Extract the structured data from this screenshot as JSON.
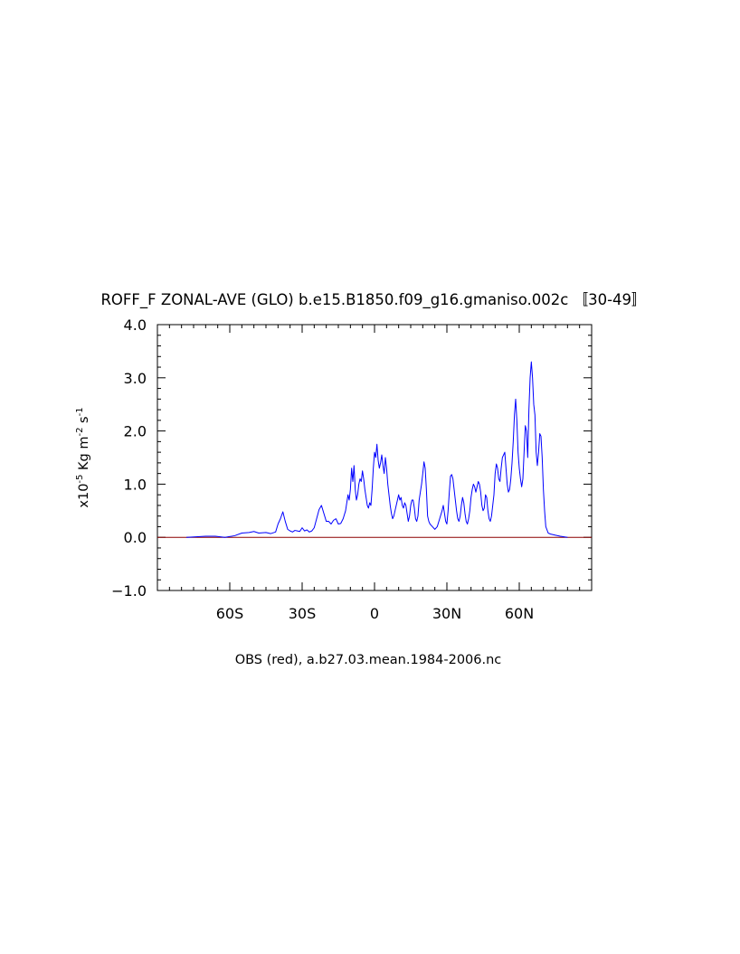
{
  "chart_data": {
    "type": "line",
    "title": "ROFF_F ZONAL-AVE (GLO) b.e15.B1850.f09_g16.gmaniso.002c 〚30-49〛",
    "xlabel": "OBS (red), a.b27.03.mean.1984-2006.nc",
    "ylabel": {
      "prefix": "x10",
      "exp1": "-5",
      "mid": " Kg m",
      "exp2": "-2",
      "mid2": " s",
      "exp3": "-1"
    },
    "xlim": [
      -90,
      90
    ],
    "ylim": [
      -1.0,
      4.0
    ],
    "x_ticks": [
      {
        "value": -60,
        "label": "60S"
      },
      {
        "value": -30,
        "label": "30S"
      },
      {
        "value": 0,
        "label": "0"
      },
      {
        "value": 30,
        "label": "30N"
      },
      {
        "value": 60,
        "label": "60N"
      }
    ],
    "y_ticks": [
      {
        "value": -1.0,
        "label": "−1.0"
      },
      {
        "value": 0.0,
        "label": "0.0"
      },
      {
        "value": 1.0,
        "label": "1.0"
      },
      {
        "value": 2.0,
        "label": "2.0"
      },
      {
        "value": 3.0,
        "label": "3.0"
      },
      {
        "value": 4.0,
        "label": "4.0"
      }
    ],
    "reference_line": {
      "y": 0,
      "color": "#8b0000"
    },
    "series": [
      {
        "color": "#0000ff",
        "points": [
          [
            -78,
            0.0
          ],
          [
            -70,
            0.02
          ],
          [
            -66,
            0.02
          ],
          [
            -62,
            0.0
          ],
          [
            -58,
            0.03
          ],
          [
            -55,
            0.08
          ],
          [
            -52,
            0.09
          ],
          [
            -50,
            0.11
          ],
          [
            -48,
            0.08
          ],
          [
            -45,
            0.09
          ],
          [
            -43,
            0.07
          ],
          [
            -41,
            0.1
          ],
          [
            -40,
            0.25
          ],
          [
            -39,
            0.35
          ],
          [
            -38,
            0.48
          ],
          [
            -37,
            0.3
          ],
          [
            -36,
            0.15
          ],
          [
            -35,
            0.12
          ],
          [
            -34,
            0.1
          ],
          [
            -33,
            0.13
          ],
          [
            -32,
            0.12
          ],
          [
            -31,
            0.11
          ],
          [
            -30,
            0.18
          ],
          [
            -29,
            0.12
          ],
          [
            -28,
            0.14
          ],
          [
            -27,
            0.1
          ],
          [
            -26,
            0.12
          ],
          [
            -25,
            0.18
          ],
          [
            -24,
            0.35
          ],
          [
            -23,
            0.52
          ],
          [
            -22,
            0.6
          ],
          [
            -21,
            0.45
          ],
          [
            -20,
            0.3
          ],
          [
            -19,
            0.3
          ],
          [
            -18,
            0.25
          ],
          [
            -17,
            0.32
          ],
          [
            -16,
            0.35
          ],
          [
            -15,
            0.25
          ],
          [
            -14,
            0.26
          ],
          [
            -13,
            0.35
          ],
          [
            -12,
            0.5
          ],
          [
            -11,
            0.8
          ],
          [
            -10.5,
            0.7
          ],
          [
            -10,
            0.9
          ],
          [
            -9.5,
            1.3
          ],
          [
            -9,
            1.05
          ],
          [
            -8.5,
            1.35
          ],
          [
            -8,
            0.9
          ],
          [
            -7.5,
            0.7
          ],
          [
            -7,
            0.8
          ],
          [
            -6.5,
            1.0
          ],
          [
            -6,
            1.1
          ],
          [
            -5.5,
            1.05
          ],
          [
            -5,
            1.25
          ],
          [
            -4.5,
            1.1
          ],
          [
            -4,
            0.9
          ],
          [
            -3.5,
            0.75
          ],
          [
            -3,
            0.6
          ],
          [
            -2.5,
            0.55
          ],
          [
            -2,
            0.65
          ],
          [
            -1.5,
            0.6
          ],
          [
            -1,
            0.9
          ],
          [
            -0.5,
            1.3
          ],
          [
            0,
            1.6
          ],
          [
            0.5,
            1.5
          ],
          [
            1,
            1.75
          ],
          [
            1.5,
            1.45
          ],
          [
            2,
            1.3
          ],
          [
            2.5,
            1.4
          ],
          [
            3,
            1.55
          ],
          [
            3.5,
            1.35
          ],
          [
            4,
            1.2
          ],
          [
            4.5,
            1.5
          ],
          [
            5,
            1.3
          ],
          [
            5.5,
            1.0
          ],
          [
            6,
            0.8
          ],
          [
            6.5,
            0.6
          ],
          [
            7,
            0.45
          ],
          [
            7.5,
            0.35
          ],
          [
            8,
            0.4
          ],
          [
            8.5,
            0.5
          ],
          [
            9,
            0.6
          ],
          [
            9.5,
            0.7
          ],
          [
            10,
            0.8
          ],
          [
            10.5,
            0.7
          ],
          [
            11,
            0.75
          ],
          [
            11.5,
            0.6
          ],
          [
            12,
            0.55
          ],
          [
            12.5,
            0.65
          ],
          [
            13,
            0.6
          ],
          [
            13.5,
            0.45
          ],
          [
            14,
            0.3
          ],
          [
            14.5,
            0.4
          ],
          [
            15,
            0.6
          ],
          [
            15.5,
            0.7
          ],
          [
            16,
            0.7
          ],
          [
            16.5,
            0.55
          ],
          [
            17,
            0.35
          ],
          [
            17.5,
            0.3
          ],
          [
            18,
            0.4
          ],
          [
            18.5,
            0.7
          ],
          [
            19,
            0.85
          ],
          [
            19.5,
            1.0
          ],
          [
            20,
            1.2
          ],
          [
            20.5,
            1.42
          ],
          [
            21,
            1.3
          ],
          [
            21.5,
            0.9
          ],
          [
            22,
            0.4
          ],
          [
            22.5,
            0.3
          ],
          [
            23,
            0.25
          ],
          [
            24,
            0.2
          ],
          [
            25,
            0.15
          ],
          [
            26,
            0.2
          ],
          [
            27,
            0.35
          ],
          [
            28,
            0.5
          ],
          [
            28.5,
            0.6
          ],
          [
            29,
            0.45
          ],
          [
            29.5,
            0.3
          ],
          [
            30,
            0.25
          ],
          [
            30.5,
            0.5
          ],
          [
            31,
            0.85
          ],
          [
            31.5,
            1.15
          ],
          [
            32,
            1.18
          ],
          [
            32.5,
            1.1
          ],
          [
            33,
            0.9
          ],
          [
            33.5,
            0.7
          ],
          [
            34,
            0.5
          ],
          [
            34.5,
            0.35
          ],
          [
            35,
            0.3
          ],
          [
            35.5,
            0.4
          ],
          [
            36,
            0.6
          ],
          [
            36.5,
            0.75
          ],
          [
            37,
            0.65
          ],
          [
            37.5,
            0.45
          ],
          [
            38,
            0.3
          ],
          [
            38.5,
            0.25
          ],
          [
            39,
            0.35
          ],
          [
            39.5,
            0.5
          ],
          [
            40,
            0.75
          ],
          [
            40.5,
            0.9
          ],
          [
            41,
            1.0
          ],
          [
            41.5,
            0.95
          ],
          [
            42,
            0.85
          ],
          [
            42.5,
            0.95
          ],
          [
            43,
            1.05
          ],
          [
            43.5,
            1.0
          ],
          [
            44,
            0.85
          ],
          [
            44.5,
            0.6
          ],
          [
            45,
            0.5
          ],
          [
            45.5,
            0.55
          ],
          [
            46,
            0.8
          ],
          [
            46.5,
            0.75
          ],
          [
            47,
            0.5
          ],
          [
            47.5,
            0.35
          ],
          [
            48,
            0.3
          ],
          [
            48.5,
            0.4
          ],
          [
            49,
            0.6
          ],
          [
            49.5,
            0.8
          ],
          [
            50,
            1.2
          ],
          [
            50.5,
            1.38
          ],
          [
            51,
            1.3
          ],
          [
            51.5,
            1.1
          ],
          [
            52,
            1.05
          ],
          [
            52.5,
            1.3
          ],
          [
            53,
            1.5
          ],
          [
            53.5,
            1.55
          ],
          [
            54,
            1.6
          ],
          [
            54.5,
            1.3
          ],
          [
            55,
            1.0
          ],
          [
            55.5,
            0.85
          ],
          [
            56,
            0.9
          ],
          [
            56.5,
            1.1
          ],
          [
            57,
            1.4
          ],
          [
            57.5,
            1.8
          ],
          [
            58,
            2.3
          ],
          [
            58.5,
            2.6
          ],
          [
            59,
            2.2
          ],
          [
            59.5,
            1.6
          ],
          [
            60,
            1.3
          ],
          [
            60.5,
            1.1
          ],
          [
            61,
            0.95
          ],
          [
            61.5,
            1.1
          ],
          [
            62,
            1.6
          ],
          [
            62.5,
            2.1
          ],
          [
            63,
            2.0
          ],
          [
            63.5,
            1.5
          ],
          [
            64,
            2.4
          ],
          [
            64.5,
            3.0
          ],
          [
            65,
            3.3
          ],
          [
            65.5,
            3.0
          ],
          [
            66,
            2.5
          ],
          [
            66.5,
            2.3
          ],
          [
            67,
            1.6
          ],
          [
            67.5,
            1.35
          ],
          [
            68,
            1.6
          ],
          [
            68.5,
            1.95
          ],
          [
            69,
            1.9
          ],
          [
            69.5,
            1.5
          ],
          [
            70,
            0.9
          ],
          [
            70.5,
            0.5
          ],
          [
            71,
            0.2
          ],
          [
            72,
            0.08
          ],
          [
            73,
            0.06
          ],
          [
            75,
            0.04
          ],
          [
            77,
            0.02
          ],
          [
            80,
            0.0
          ]
        ]
      }
    ]
  }
}
